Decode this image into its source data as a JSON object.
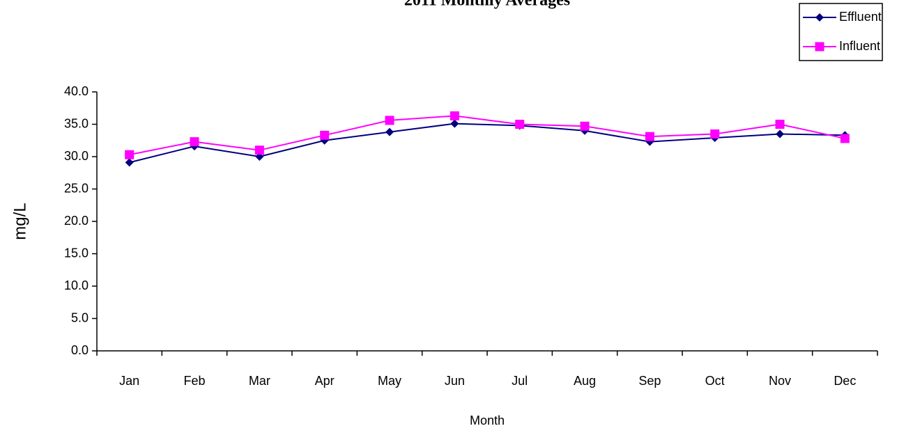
{
  "chart_data": {
    "type": "line",
    "title": "2011 Monthly Averages",
    "x_label": "Month",
    "y_label": "mg/L",
    "categories": [
      "Jan",
      "Feb",
      "Mar",
      "Apr",
      "May",
      "Jun",
      "Jul",
      "Aug",
      "Sep",
      "Oct",
      "Nov",
      "Dec"
    ],
    "series": [
      {
        "name": "Effluent",
        "color": "#000080",
        "marker": "diamond",
        "values": [
          29.1,
          31.6,
          30.0,
          32.5,
          33.8,
          35.1,
          34.8,
          34.0,
          32.3,
          32.9,
          33.5,
          33.3
        ]
      },
      {
        "name": "Influent",
        "color": "#ff00ff",
        "marker": "square",
        "values": [
          30.3,
          32.3,
          31.0,
          33.3,
          35.6,
          36.3,
          35.0,
          34.7,
          33.1,
          33.5,
          35.0,
          32.8
        ]
      }
    ],
    "ylim": [
      0,
      40
    ],
    "yticks": [
      {
        "value": 0,
        "label": "0.0"
      },
      {
        "value": 5,
        "label": "5.0"
      },
      {
        "value": 10,
        "label": "10.0"
      },
      {
        "value": 15,
        "label": "15.0"
      },
      {
        "value": 20,
        "label": "20.0"
      },
      {
        "value": 25,
        "label": "25.0"
      },
      {
        "value": 30,
        "label": "30.0"
      },
      {
        "value": 35,
        "label": "35.0"
      },
      {
        "value": 40,
        "label": "40.0"
      }
    ],
    "legend": "top-right",
    "grid": false
  }
}
